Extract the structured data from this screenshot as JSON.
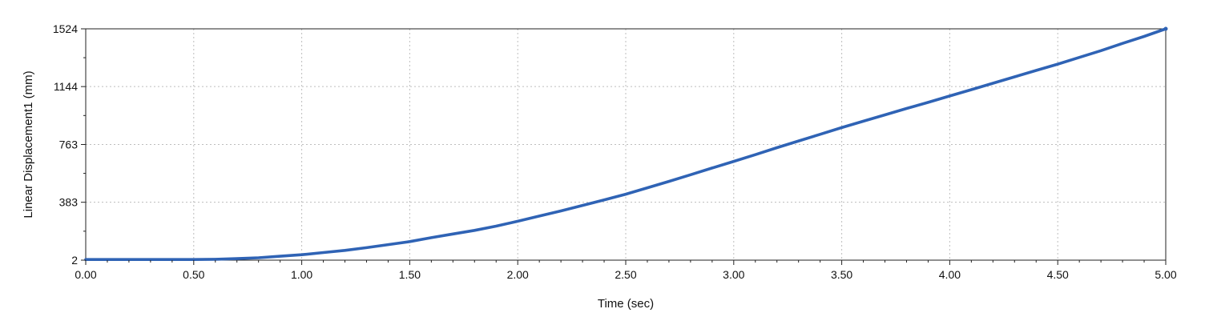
{
  "chart_data": {
    "type": "line",
    "title": "",
    "xlabel": "Time (sec)",
    "ylabel": "Linear Displacement1 (mm)",
    "xlim": [
      0,
      5
    ],
    "ylim": [
      2,
      1524
    ],
    "x_ticks": [
      0,
      0.5,
      1,
      1.5,
      2,
      2.5,
      3,
      3.5,
      4,
      4.5,
      5
    ],
    "x_tick_labels": [
      "0.00",
      "0.50",
      "1.00",
      "1.50",
      "2.00",
      "2.50",
      "3.00",
      "3.50",
      "4.00",
      "4.50",
      "5.00"
    ],
    "y_ticks": [
      2,
      383,
      763,
      1144,
      1524
    ],
    "y_tick_labels": [
      "2",
      "383",
      "763",
      "1144",
      "1524"
    ],
    "grid": true,
    "legend": "none",
    "series": [
      {
        "color": "#2f63b5",
        "x": [
          0.0,
          0.25,
          0.5,
          0.6,
          0.7,
          0.8,
          0.9,
          1.0,
          1.1,
          1.2,
          1.3,
          1.4,
          1.5,
          1.6,
          1.7,
          1.8,
          1.9,
          2.0,
          2.1,
          2.2,
          2.3,
          2.4,
          2.5,
          2.6,
          2.7,
          2.8,
          2.9,
          3.0,
          3.1,
          3.2,
          3.3,
          3.4,
          3.5,
          3.6,
          3.7,
          3.8,
          3.9,
          4.0,
          4.1,
          4.2,
          4.3,
          4.4,
          4.5,
          4.6,
          4.7,
          4.8,
          4.9,
          5.0
        ],
        "y": [
          6,
          6,
          6,
          8,
          12,
          18,
          28,
          38,
          52,
          66,
          84,
          104,
          124,
          150,
          174,
          198,
          226,
          258,
          292,
          326,
          362,
          398,
          436,
          478,
          520,
          564,
          608,
          652,
          696,
          742,
          786,
          830,
          874,
          916,
          958,
          1000,
          1040,
          1082,
          1124,
          1166,
          1208,
          1250,
          1292,
          1336,
          1380,
          1428,
          1474,
          1524
        ]
      }
    ]
  }
}
